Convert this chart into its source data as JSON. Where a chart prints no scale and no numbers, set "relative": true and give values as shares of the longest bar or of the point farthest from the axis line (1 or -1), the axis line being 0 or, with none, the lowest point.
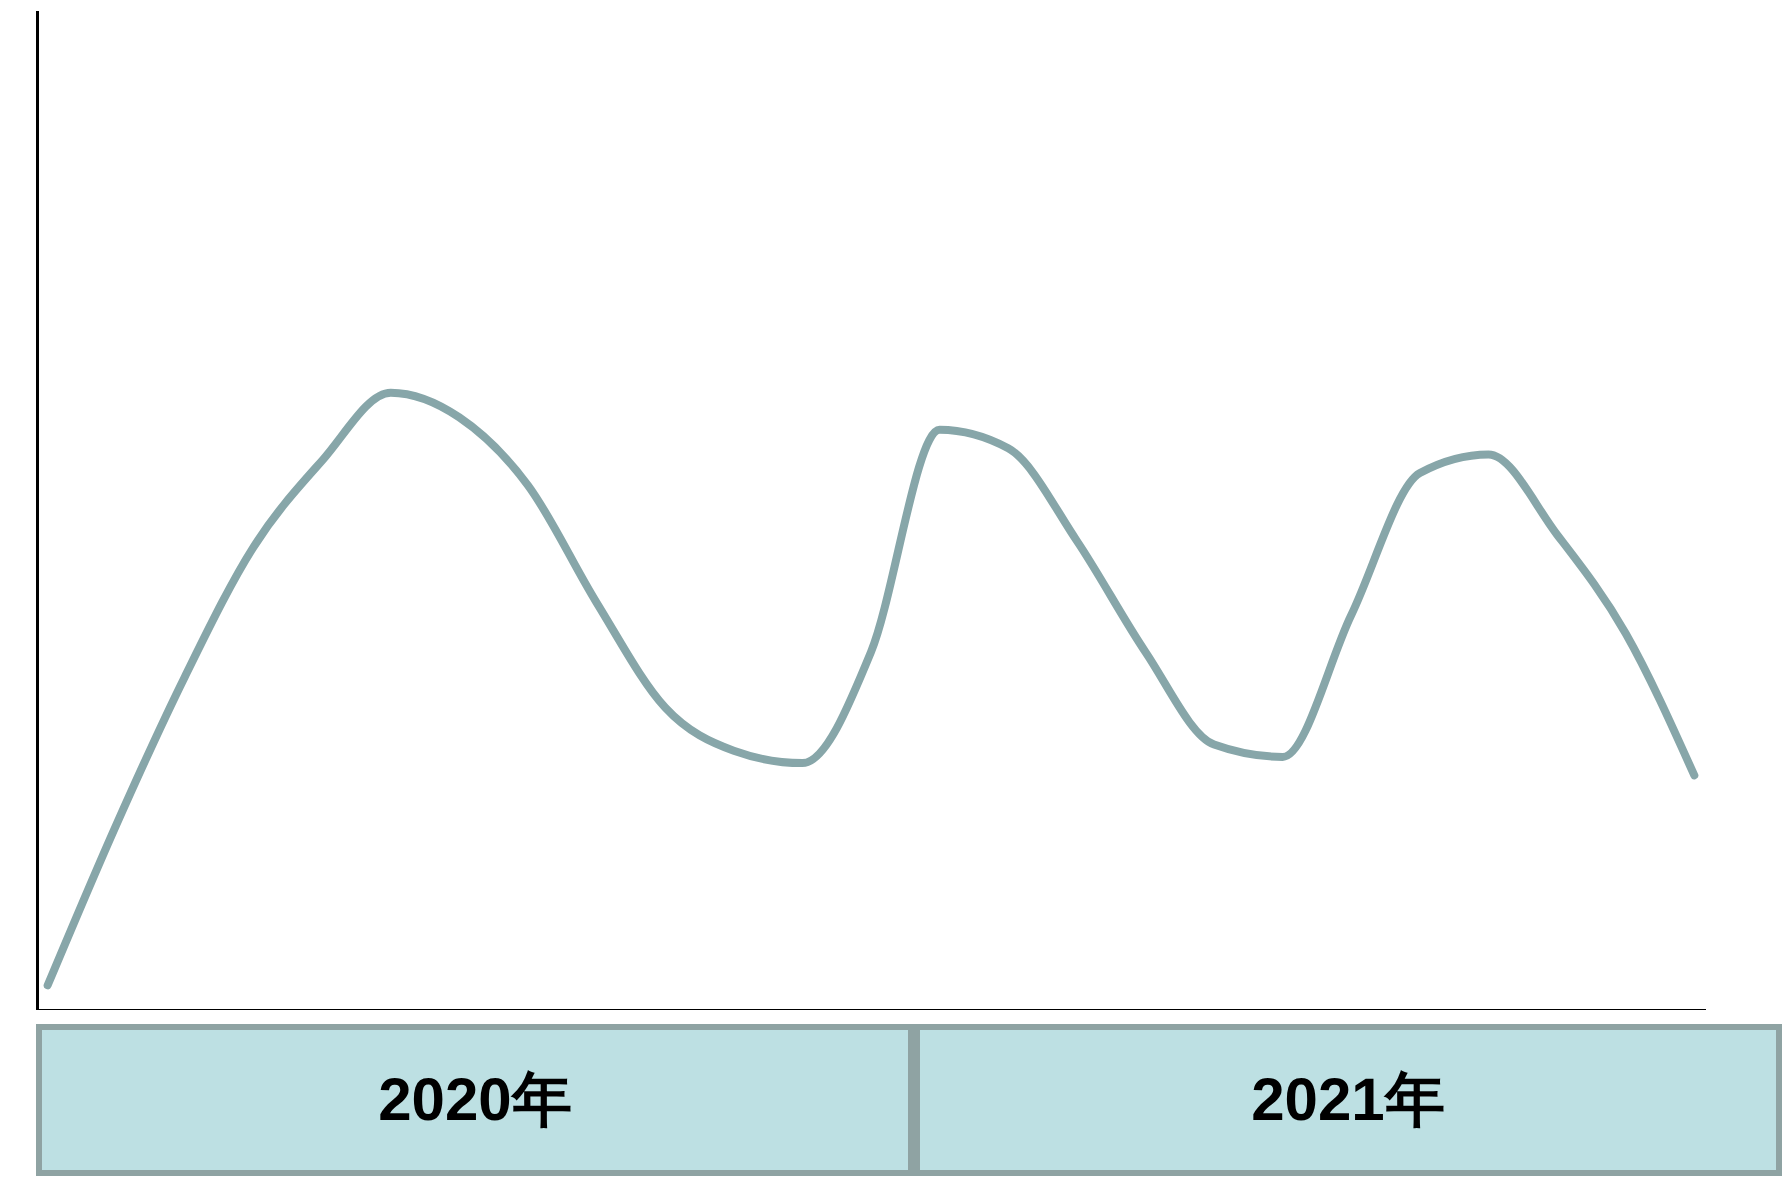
{
  "chart_data": {
    "type": "line",
    "relative": true,
    "categories": [
      null,
      null,
      null,
      null,
      null,
      null,
      null,
      null,
      null,
      null,
      null,
      null,
      null,
      null,
      null,
      null,
      null,
      null,
      null,
      null,
      null,
      null,
      null,
      null,
      null
    ],
    "series": [
      {
        "color": "#87a6a9",
        "values": [
          0.04,
          0.3,
          0.54,
          0.75,
          0.89,
          1,
          0.96,
          0.85,
          0.66,
          0.49,
          0.42,
          0.4,
          0.58,
          0.94,
          0.91,
          0.76,
          0.58,
          0.43,
          0.41,
          0.64,
          0.87,
          0.9,
          0.77,
          0.61,
          0.38
        ]
      }
    ],
    "annotations": [
      "2020年",
      "2021年"
    ],
    "grid": false,
    "legend": false,
    "marker": "none",
    "line_style": "solid"
  }
}
